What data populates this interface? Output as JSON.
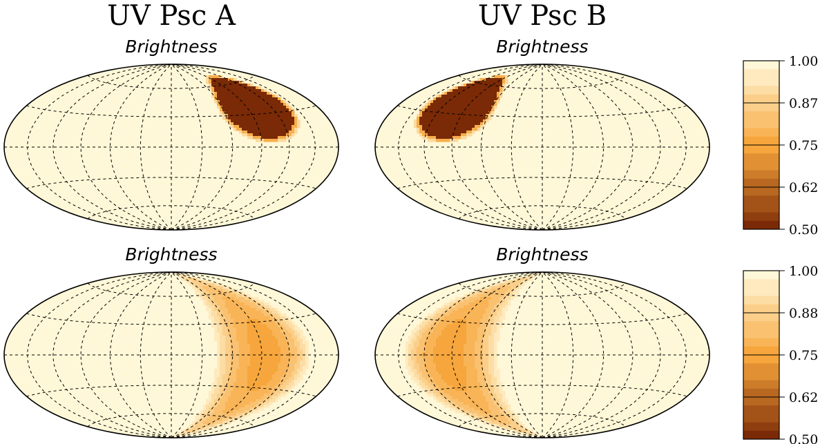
{
  "chart_data": {
    "type": "heatmap",
    "projection": "hammer-aitoff",
    "grid": true,
    "colormap": {
      "low": "#7a2a06",
      "mid": "#f6a63c",
      "high": "#fff8d8"
    },
    "column_titles": [
      "UV Psc A",
      "UV Psc B"
    ],
    "panels": [
      {
        "row": 0,
        "col": 0,
        "title": "Brightness",
        "style": "spot",
        "spot": {
          "lon_center": 100,
          "lat_center": 38,
          "lon_half_width": 40,
          "lat_half_width": 30,
          "value_min": 0.5
        }
      },
      {
        "row": 0,
        "col": 1,
        "title": "Brightness",
        "style": "spot",
        "spot": {
          "lon_center": -100,
          "lat_center": 38,
          "lon_half_width": 40,
          "lat_half_width": 30,
          "value_min": 0.5
        }
      },
      {
        "row": 1,
        "col": 0,
        "title": "Brightness",
        "style": "crescent",
        "spot": {
          "lon_center": 95,
          "lon_half_width": 38,
          "lat_extent": 78,
          "value_min": 0.75
        }
      },
      {
        "row": 1,
        "col": 1,
        "title": "Brightness",
        "style": "crescent",
        "spot": {
          "lon_center": -95,
          "lon_half_width": 38,
          "lat_extent": 78,
          "value_min": 0.75
        }
      }
    ],
    "colorbars": [
      {
        "row": 0,
        "min": 0.5,
        "max": 1.0,
        "ticks": [
          "1.00",
          "0.87",
          "0.75",
          "0.62",
          "0.50"
        ]
      },
      {
        "row": 1,
        "min": 0.5,
        "max": 1.0,
        "ticks": [
          "1.00",
          "0.88",
          "0.75",
          "0.62",
          "0.50"
        ]
      }
    ]
  }
}
